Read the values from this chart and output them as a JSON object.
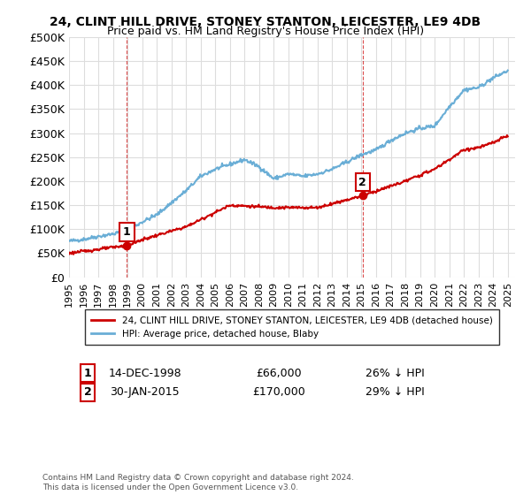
{
  "title": "24, CLINT HILL DRIVE, STONEY STANTON, LEICESTER, LE9 4DB",
  "subtitle": "Price paid vs. HM Land Registry's House Price Index (HPI)",
  "ylim": [
    0,
    500000
  ],
  "yticks": [
    0,
    50000,
    100000,
    150000,
    200000,
    250000,
    300000,
    350000,
    400000,
    450000,
    500000
  ],
  "ytick_labels": [
    "£0",
    "£50K",
    "£100K",
    "£150K",
    "£200K",
    "£250K",
    "£300K",
    "£350K",
    "£400K",
    "£450K",
    "£500K"
  ],
  "xlim_start": 1995.0,
  "xlim_end": 2025.5,
  "xtick_years": [
    1995,
    1996,
    1997,
    1998,
    1999,
    2000,
    2001,
    2002,
    2003,
    2004,
    2005,
    2006,
    2007,
    2008,
    2009,
    2010,
    2011,
    2012,
    2013,
    2014,
    2015,
    2016,
    2017,
    2018,
    2019,
    2020,
    2021,
    2022,
    2023,
    2024,
    2025
  ],
  "sale1_x": 1998.96,
  "sale1_y": 66000,
  "sale1_label": "1",
  "sale1_date": "14-DEC-1998",
  "sale1_price": "£66,000",
  "sale1_note": "26% ↓ HPI",
  "sale2_x": 2015.08,
  "sale2_y": 170000,
  "sale2_label": "2",
  "sale2_date": "30-JAN-2015",
  "sale2_price": "£170,000",
  "sale2_note": "29% ↓ HPI",
  "hpi_color": "#6aaed6",
  "sale_color": "#cc0000",
  "bg_color": "#ffffff",
  "grid_color": "#dddddd",
  "legend_label_sale": "24, CLINT HILL DRIVE, STONEY STANTON, LEICESTER, LE9 4DB (detached house)",
  "legend_label_hpi": "HPI: Average price, detached house, Blaby",
  "footer": "Contains HM Land Registry data © Crown copyright and database right 2024.\nThis data is licensed under the Open Government Licence v3.0."
}
